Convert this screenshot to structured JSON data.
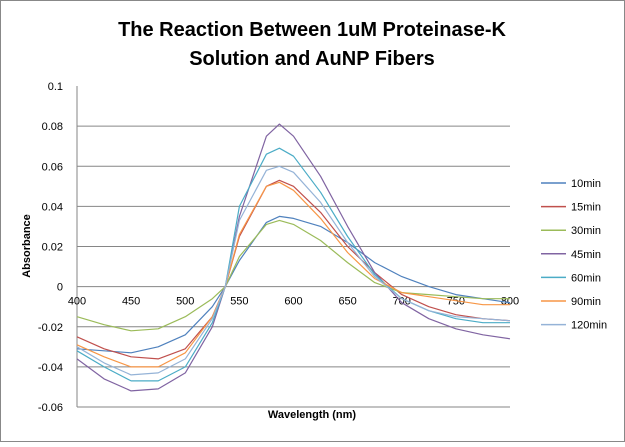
{
  "chart_data": {
    "type": "line",
    "title": "The Reaction Between 1uM Proteinase-K Solution and AuNP Fibers",
    "title_lines": [
      "The Reaction Between 1uM Proteinase-K",
      "Solution and AuNP Fibers"
    ],
    "xlabel": "Wavelength (nm)",
    "ylabel": "Absorbance",
    "xlim": [
      400,
      800
    ],
    "ylim": [
      -0.06,
      0.1
    ],
    "xticks": [
      "400",
      "450",
      "500",
      "550",
      "600",
      "650",
      "700",
      "750",
      "800"
    ],
    "yticks": [
      "0.1",
      "0.08",
      "0.06",
      "0.04",
      "0.02",
      "0",
      "-0.02",
      "-0.04",
      "-0.06"
    ],
    "grid": "horizontal",
    "legend": "right",
    "x": [
      400,
      425,
      450,
      475,
      500,
      525,
      537,
      550,
      575,
      587,
      600,
      625,
      650,
      675,
      700,
      725,
      750,
      775,
      800
    ],
    "series": [
      {
        "name": "10min",
        "color": "#4F81BD",
        "values": [
          -0.031,
          -0.032,
          -0.033,
          -0.03,
          -0.024,
          -0.01,
          0,
          0.013,
          0.032,
          0.035,
          0.034,
          0.03,
          0.022,
          0.012,
          0.005,
          0.0,
          -0.004,
          -0.006,
          -0.008
        ]
      },
      {
        "name": "15min",
        "color": "#C0504D",
        "values": [
          -0.025,
          -0.031,
          -0.035,
          -0.036,
          -0.031,
          -0.015,
          0,
          0.025,
          0.05,
          0.053,
          0.05,
          0.037,
          0.02,
          0.007,
          -0.004,
          -0.01,
          -0.014,
          -0.016,
          -0.017
        ]
      },
      {
        "name": "30min",
        "color": "#9BBB59",
        "values": [
          -0.015,
          -0.019,
          -0.022,
          -0.021,
          -0.015,
          -0.006,
          0,
          0.015,
          0.031,
          0.033,
          0.031,
          0.023,
          0.012,
          0.002,
          -0.003,
          -0.004,
          -0.005,
          -0.006,
          -0.006
        ]
      },
      {
        "name": "45min",
        "color": "#8064A2",
        "values": [
          -0.036,
          -0.046,
          -0.052,
          -0.051,
          -0.043,
          -0.02,
          0,
          0.035,
          0.075,
          0.081,
          0.075,
          0.055,
          0.03,
          0.007,
          -0.008,
          -0.016,
          -0.021,
          -0.024,
          -0.026
        ]
      },
      {
        "name": "60min",
        "color": "#4BACC6",
        "values": [
          -0.032,
          -0.04,
          -0.047,
          -0.047,
          -0.04,
          -0.018,
          0,
          0.04,
          0.066,
          0.069,
          0.065,
          0.047,
          0.025,
          0.006,
          -0.006,
          -0.012,
          -0.016,
          -0.018,
          -0.018
        ]
      },
      {
        "name": "90min",
        "color": "#F79646",
        "values": [
          -0.029,
          -0.035,
          -0.04,
          -0.04,
          -0.033,
          -0.015,
          0,
          0.026,
          0.05,
          0.052,
          0.048,
          0.034,
          0.017,
          0.004,
          -0.003,
          -0.005,
          -0.007,
          -0.009,
          -0.009
        ]
      },
      {
        "name": "120min",
        "color": "#95B3D7",
        "values": [
          -0.03,
          -0.038,
          -0.044,
          -0.043,
          -0.036,
          -0.016,
          0,
          0.033,
          0.058,
          0.06,
          0.057,
          0.042,
          0.022,
          0.005,
          -0.006,
          -0.012,
          -0.015,
          -0.016,
          -0.017
        ]
      }
    ]
  }
}
